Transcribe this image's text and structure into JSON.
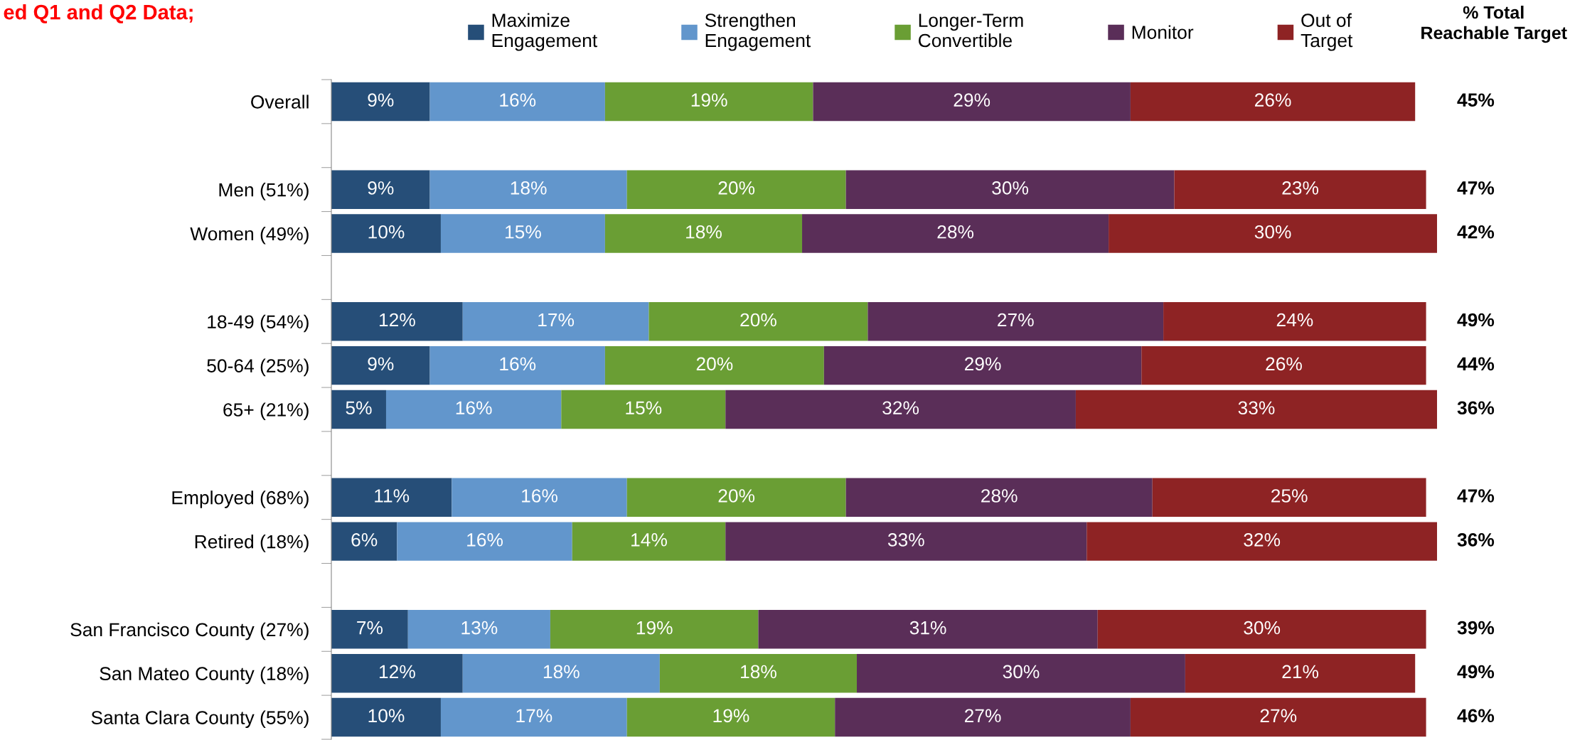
{
  "chart_data": {
    "type": "bar",
    "orientation": "horizontal",
    "stacked": true,
    "legend": "top",
    "grid": false,
    "title": "ed Q1 and Q2 Data;",
    "categories": [
      "Overall",
      null,
      "Men (51%)",
      "Women (49%)",
      null,
      "18-49 (54%)",
      "50-64 (25%)",
      "65+ (21%)",
      null,
      "Employed (68%)",
      "Retired (18%)",
      null,
      "San Francisco County (27%)",
      "San Mateo County (18%)",
      "Santa Clara County (55%)"
    ],
    "series": [
      {
        "name": "Maximize\nEngagement",
        "color": "#264e78",
        "values": [
          9,
          null,
          9,
          10,
          null,
          12,
          9,
          5,
          null,
          11,
          6,
          null,
          7,
          12,
          10
        ],
        "value_labels": [
          "9%",
          null,
          "9%",
          "10%",
          null,
          "12%",
          "9%",
          "5%",
          null,
          "11%",
          "6%",
          null,
          "7%",
          "12%",
          "10%"
        ]
      },
      {
        "name": "Strengthen\nEngagement",
        "color": "#6296cc",
        "values": [
          16,
          null,
          18,
          15,
          null,
          17,
          16,
          16,
          null,
          16,
          16,
          null,
          13,
          18,
          17
        ],
        "value_labels": [
          "16%",
          null,
          "18%",
          "15%",
          null,
          "17%",
          "16%",
          "16%",
          null,
          "16%",
          "16%",
          null,
          "13%",
          "18%",
          "17%"
        ]
      },
      {
        "name": "Longer-Term\nConvertible",
        "color": "#6a9e34",
        "values": [
          19,
          null,
          20,
          18,
          null,
          20,
          20,
          15,
          null,
          20,
          14,
          null,
          19,
          18,
          19
        ],
        "value_labels": [
          "19%",
          null,
          "20%",
          "18%",
          null,
          "20%",
          "20%",
          "15%",
          null,
          "20%",
          "14%",
          null,
          "19%",
          "18%",
          "19%"
        ]
      },
      {
        "name": "Monitor",
        "color": "#5a2e58",
        "values": [
          29,
          null,
          30,
          28,
          null,
          27,
          29,
          32,
          null,
          28,
          33,
          null,
          31,
          30,
          27
        ],
        "value_labels": [
          "29%",
          null,
          "30%",
          "28%",
          null,
          "27%",
          "29%",
          "32%",
          null,
          "28%",
          "33%",
          null,
          "31%",
          "30%",
          "27%"
        ]
      },
      {
        "name": "Out of\nTarget",
        "color": "#8e2324",
        "values": [
          26,
          null,
          23,
          30,
          null,
          24,
          26,
          33,
          null,
          25,
          32,
          null,
          30,
          21,
          27
        ],
        "value_labels": [
          "26%",
          null,
          "23%",
          "30%",
          null,
          "24%",
          "26%",
          "33%",
          null,
          "25%",
          "32%",
          null,
          "30%",
          "21%",
          "27%"
        ]
      }
    ],
    "annotations": [
      "% Total\nReachable Target",
      "45%",
      "47%",
      "42%",
      "49%",
      "44%",
      "36%",
      "47%",
      "36%",
      "39%",
      "49%",
      "46%"
    ]
  }
}
